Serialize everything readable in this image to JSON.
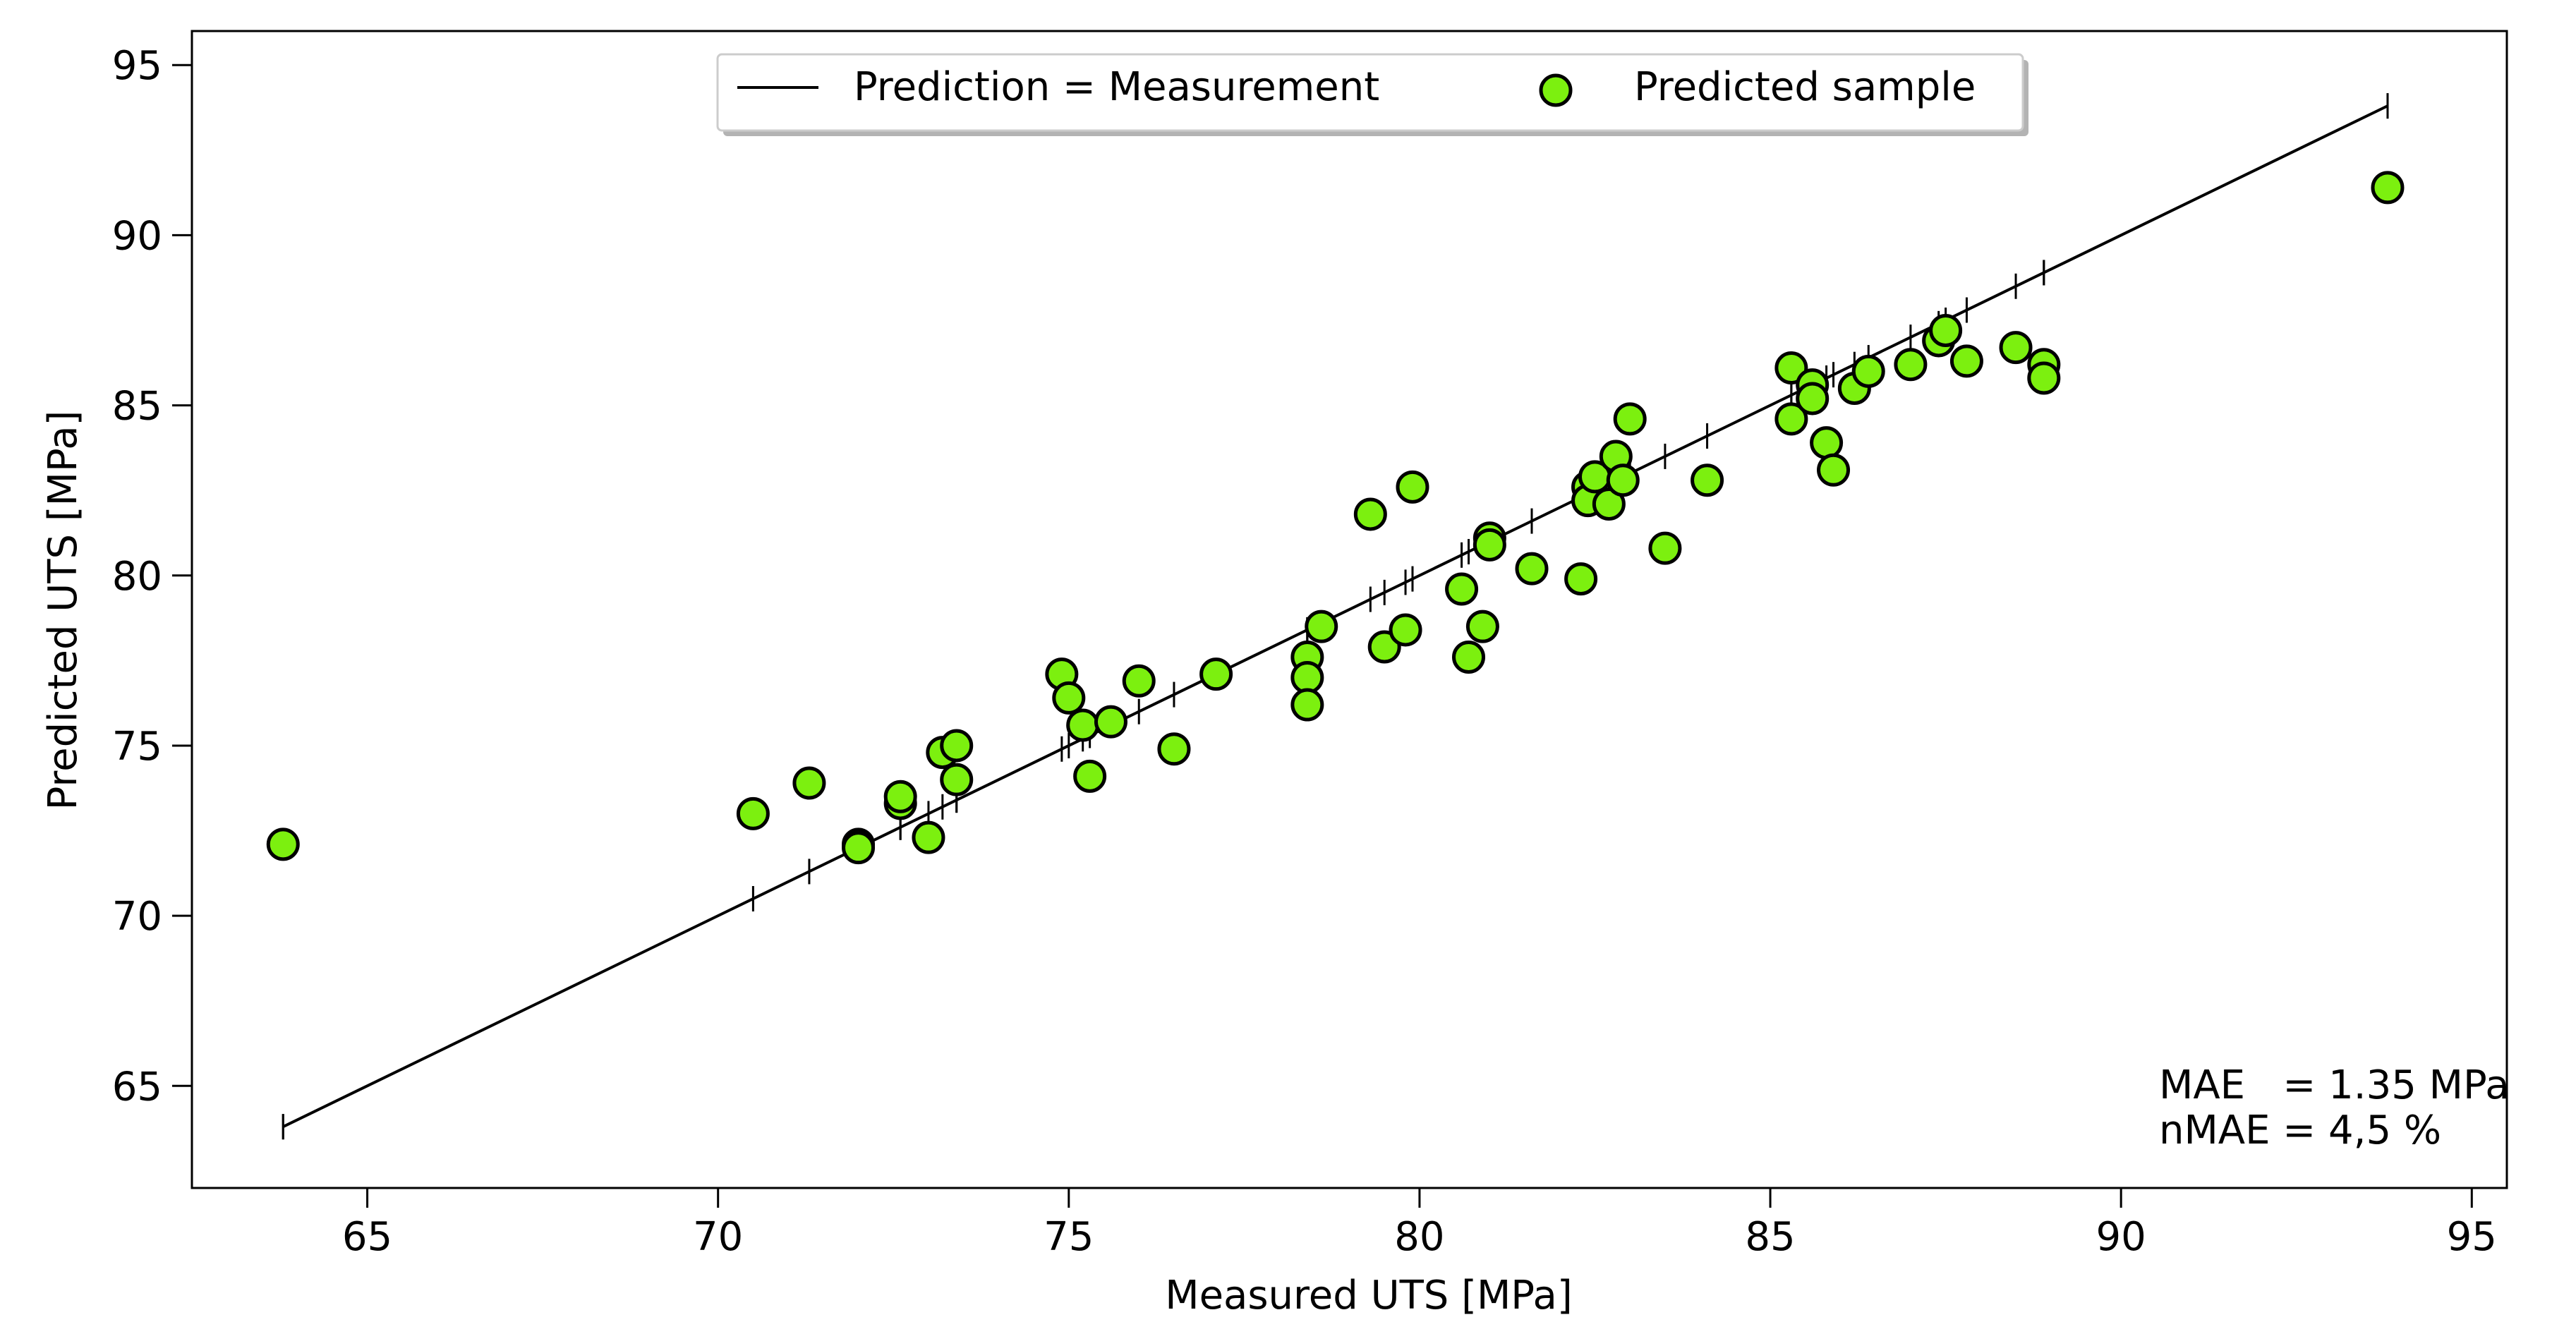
{
  "chart_data": {
    "type": "scatter",
    "xlabel": "Measured UTS [MPa]",
    "ylabel": "Predicted UTS [MPa]",
    "xlim": [
      62.5,
      95.5
    ],
    "ylim": [
      62.0,
      96.0
    ],
    "xticks": [
      65,
      70,
      75,
      80,
      85,
      90,
      95
    ],
    "yticks": [
      65,
      70,
      75,
      80,
      85,
      90,
      95
    ],
    "grid": false,
    "legend_position": "top-center",
    "legend": {
      "line_label": "Prediction = Measurement",
      "marker_label": "Predicted sample"
    },
    "annotation": {
      "line1": "MAE   = 1.35 MPa",
      "line2": "nMAE = 4,5 %"
    },
    "colors": {
      "marker_fill": "#7cf00f",
      "marker_edge": "#000000",
      "line": "#000000"
    },
    "identity_line": {
      "x": [
        63.8,
        93.8
      ],
      "y": [
        63.8,
        93.8
      ]
    },
    "series": [
      {
        "name": "Predicted sample",
        "points": [
          [
            63.8,
            72.1
          ],
          [
            70.5,
            73.0
          ],
          [
            71.3,
            73.9
          ],
          [
            72.0,
            72.1
          ],
          [
            72.0,
            72.0
          ],
          [
            72.6,
            73.3
          ],
          [
            72.6,
            73.5
          ],
          [
            73.0,
            72.3
          ],
          [
            73.2,
            74.8
          ],
          [
            73.4,
            75.0
          ],
          [
            73.4,
            74.0
          ],
          [
            74.9,
            77.1
          ],
          [
            75.0,
            76.4
          ],
          [
            75.2,
            75.6
          ],
          [
            75.3,
            74.1
          ],
          [
            75.6,
            75.7
          ],
          [
            76.0,
            76.9
          ],
          [
            76.5,
            74.9
          ],
          [
            77.1,
            77.1
          ],
          [
            78.4,
            77.6
          ],
          [
            78.4,
            77.0
          ],
          [
            78.4,
            76.2
          ],
          [
            78.6,
            78.5
          ],
          [
            79.3,
            81.8
          ],
          [
            79.5,
            77.9
          ],
          [
            79.8,
            78.4
          ],
          [
            79.9,
            82.6
          ],
          [
            80.6,
            79.6
          ],
          [
            80.7,
            77.6
          ],
          [
            80.9,
            78.5
          ],
          [
            81.0,
            81.1
          ],
          [
            81.0,
            80.9
          ],
          [
            81.6,
            80.2
          ],
          [
            82.3,
            79.9
          ],
          [
            82.4,
            82.6
          ],
          [
            82.4,
            82.2
          ],
          [
            82.5,
            82.9
          ],
          [
            82.7,
            82.1
          ],
          [
            82.8,
            83.5
          ],
          [
            82.9,
            82.8
          ],
          [
            83.0,
            84.6
          ],
          [
            83.5,
            80.8
          ],
          [
            84.1,
            82.8
          ],
          [
            85.3,
            86.1
          ],
          [
            85.3,
            84.6
          ],
          [
            85.6,
            85.6
          ],
          [
            85.6,
            85.2
          ],
          [
            85.8,
            83.9
          ],
          [
            85.9,
            83.1
          ],
          [
            86.2,
            85.5
          ],
          [
            86.4,
            86.0
          ],
          [
            87.0,
            86.2
          ],
          [
            87.4,
            86.9
          ],
          [
            87.5,
            87.2
          ],
          [
            87.8,
            86.3
          ],
          [
            88.5,
            86.7
          ],
          [
            88.9,
            86.2
          ],
          [
            88.9,
            85.8
          ],
          [
            93.8,
            91.4
          ]
        ]
      }
    ]
  }
}
